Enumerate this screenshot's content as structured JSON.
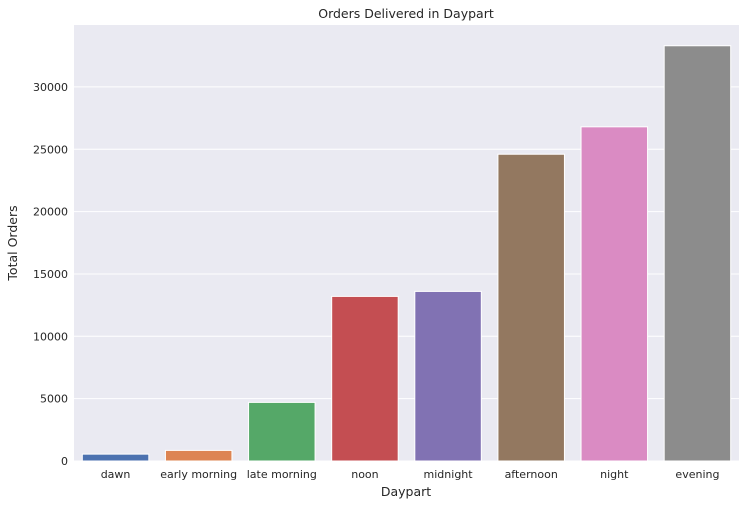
{
  "chart_data": {
    "type": "bar",
    "title": "Orders Delivered in Daypart",
    "xlabel": "Daypart",
    "ylabel": "Total Orders",
    "categories": [
      "dawn",
      "early morning",
      "late morning",
      "noon",
      "midnight",
      "afternoon",
      "night",
      "evening"
    ],
    "values": [
      550,
      850,
      4700,
      13200,
      13600,
      24600,
      26800,
      33300
    ],
    "colors": [
      "#4c72b0",
      "#dd8452",
      "#55a868",
      "#c44e52",
      "#8172b3",
      "#937860",
      "#da8bc3",
      "#8c8c8c"
    ],
    "ylim": [
      0,
      34965
    ],
    "yticks": [
      0,
      5000,
      10000,
      15000,
      20000,
      25000,
      30000
    ],
    "grid": true,
    "legend": "none",
    "background": "#eaeaf2"
  }
}
